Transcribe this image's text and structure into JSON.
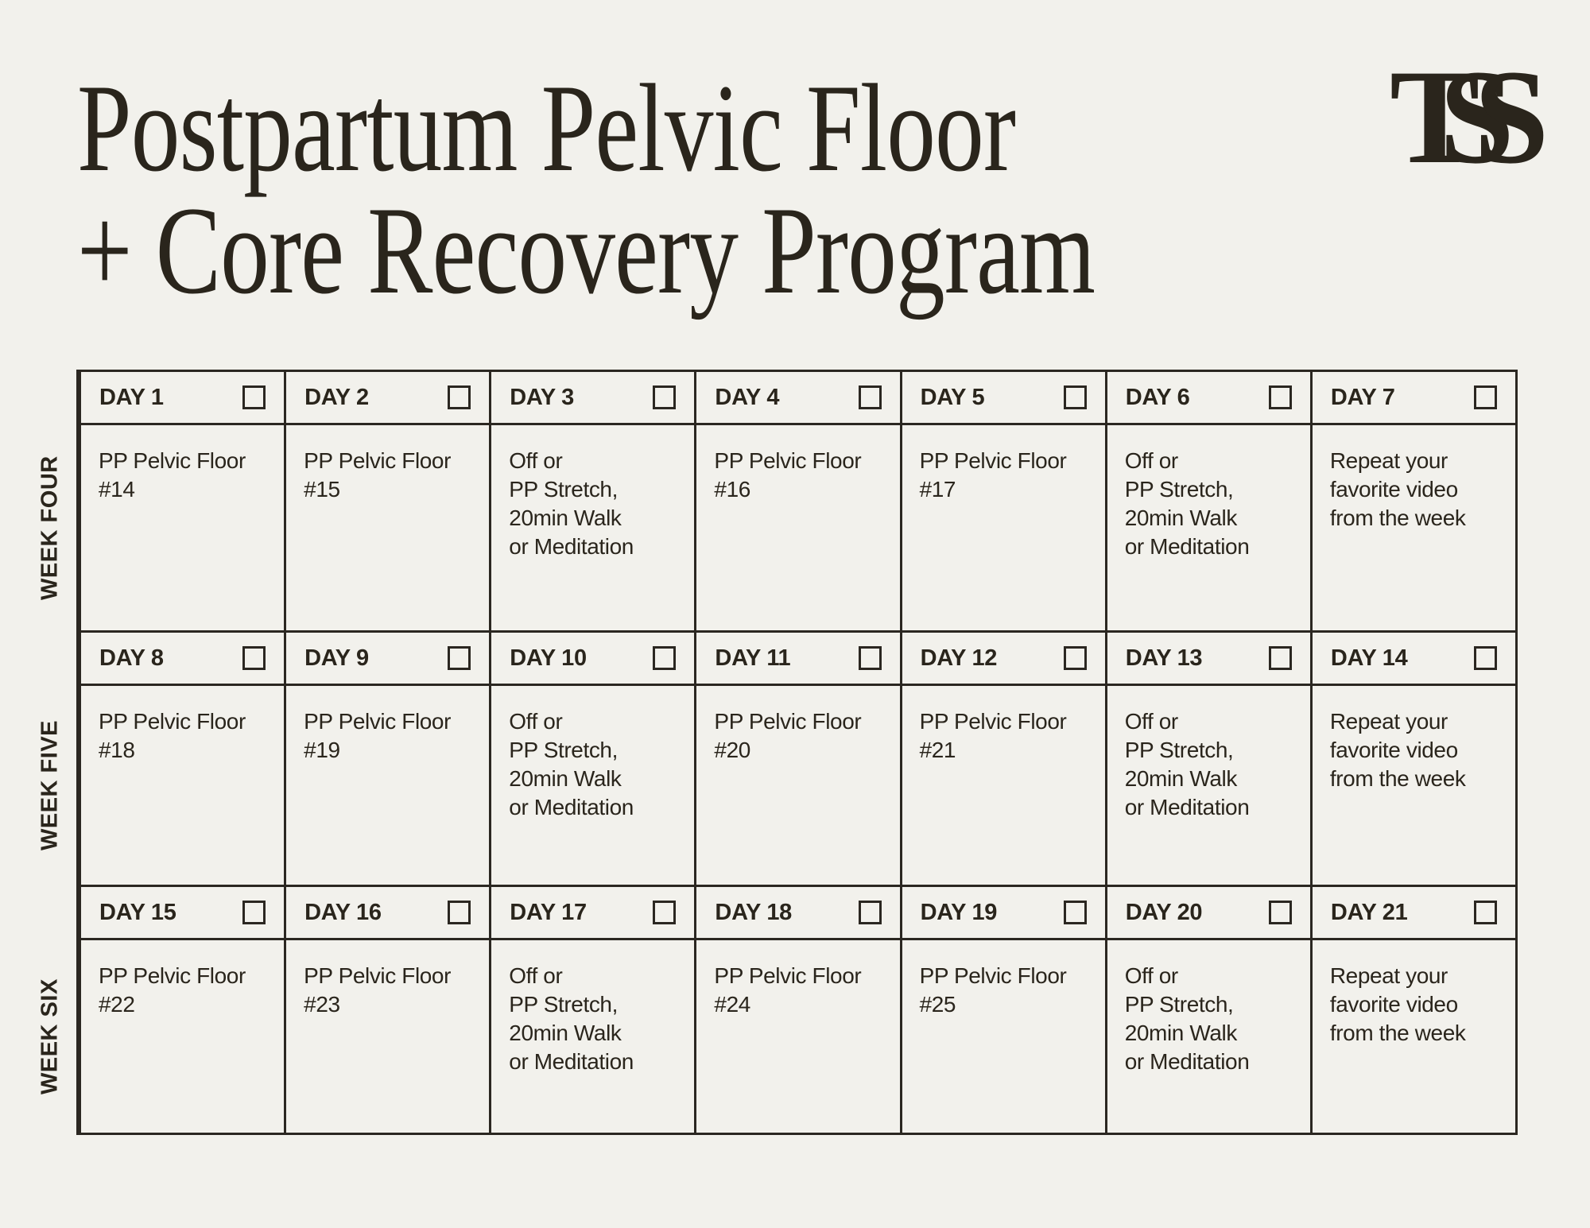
{
  "header": {
    "title_line1": "Postpartum Pelvic Floor",
    "title_line2": "+ Core Recovery Program"
  },
  "brand": {
    "logo_text": "TSS"
  },
  "colors": {
    "background": "#f2f1ec",
    "ink": "#2a251c",
    "line": "#2b2721"
  },
  "weeks": [
    {
      "label": "WEEK FOUR",
      "days": [
        {
          "name": "DAY 1",
          "activity": "PP Pelvic Floor\n#14"
        },
        {
          "name": "DAY 2",
          "activity": "PP Pelvic Floor\n#15"
        },
        {
          "name": "DAY 3",
          "activity": "Off or\nPP Stretch,\n20min Walk\nor Meditation"
        },
        {
          "name": "DAY 4",
          "activity": "PP Pelvic Floor\n#16"
        },
        {
          "name": "DAY 5",
          "activity": "PP Pelvic Floor\n#17"
        },
        {
          "name": "DAY 6",
          "activity": "Off or\nPP Stretch,\n20min Walk\nor Meditation"
        },
        {
          "name": "DAY 7",
          "activity": "Repeat your\nfavorite video\nfrom the week"
        }
      ]
    },
    {
      "label": "WEEK FIVE",
      "days": [
        {
          "name": "DAY 8",
          "activity": "PP Pelvic Floor\n#18"
        },
        {
          "name": "DAY 9",
          "activity": "PP Pelvic Floor\n#19"
        },
        {
          "name": "DAY 10",
          "activity": "Off or\nPP Stretch,\n20min Walk\nor Meditation"
        },
        {
          "name": "DAY 11",
          "activity": "PP Pelvic Floor\n#20"
        },
        {
          "name": "DAY 12",
          "activity": "PP Pelvic Floor\n#21"
        },
        {
          "name": "DAY 13",
          "activity": "Off or\nPP Stretch,\n20min Walk\nor Meditation"
        },
        {
          "name": "DAY 14",
          "activity": "Repeat your\nfavorite video\nfrom the week"
        }
      ]
    },
    {
      "label": "WEEK SIX",
      "days": [
        {
          "name": "DAY 15",
          "activity": "PP Pelvic Floor\n#22"
        },
        {
          "name": "DAY 16",
          "activity": "PP Pelvic Floor\n#23"
        },
        {
          "name": "DAY 17",
          "activity": "Off or\nPP Stretch,\n20min Walk\nor Meditation"
        },
        {
          "name": "DAY 18",
          "activity": "PP Pelvic Floor\n#24"
        },
        {
          "name": "DAY 19",
          "activity": "PP Pelvic Floor\n#25"
        },
        {
          "name": "DAY 20",
          "activity": "Off or\nPP Stretch,\n20min Walk\nor Meditation"
        },
        {
          "name": "DAY 21",
          "activity": "Repeat your\nfavorite video\nfrom the week"
        }
      ]
    }
  ]
}
